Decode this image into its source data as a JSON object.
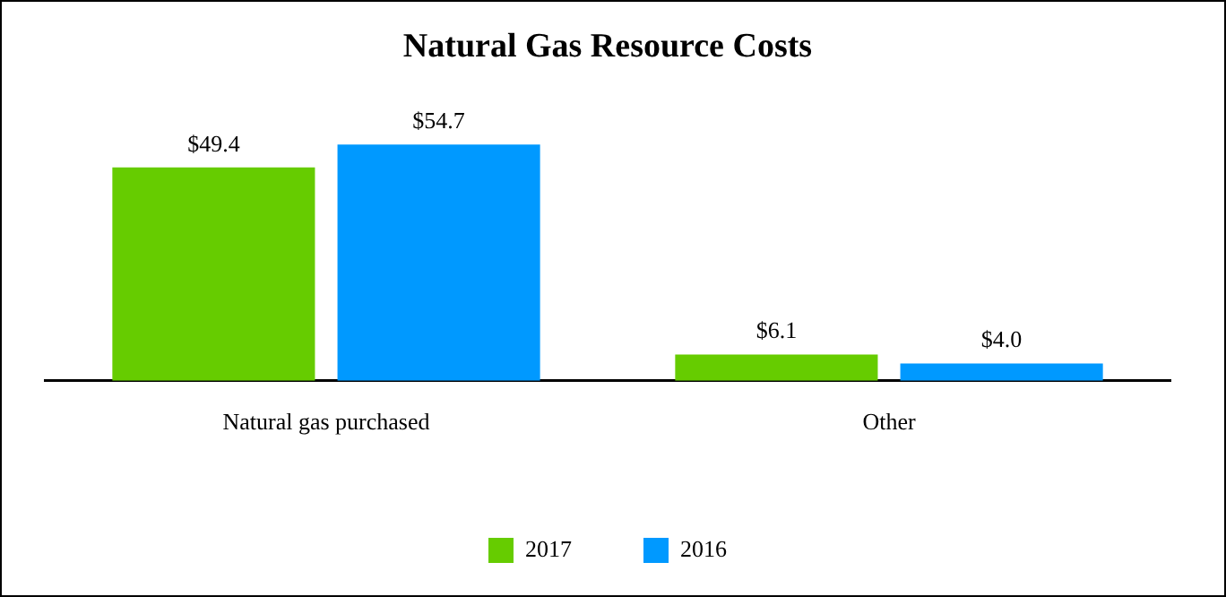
{
  "chart_data": {
    "type": "bar",
    "title": "Natural Gas Resource Costs",
    "categories": [
      "Natural gas purchased",
      "Other"
    ],
    "series": [
      {
        "name": "2017",
        "color": "#66cc00",
        "values": [
          49.4,
          6.1
        ],
        "value_labels": [
          "$49.4",
          "$6.1"
        ]
      },
      {
        "name": "2016",
        "color": "#0099ff",
        "values": [
          54.7,
          4.0
        ],
        "value_labels": [
          "$54.7",
          "$4.0"
        ]
      }
    ],
    "legend": "bottom",
    "grid": false
  }
}
